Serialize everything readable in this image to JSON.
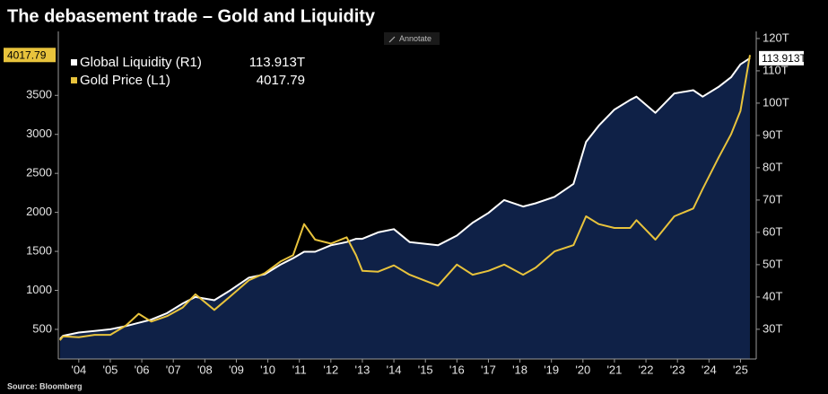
{
  "toolbar": {
    "annotate": "Annotate"
  },
  "chart_data": {
    "type": "line",
    "title": "The debasement trade – Gold and Liquidity",
    "source": "Source: Bloomberg",
    "x": [
      2003.9,
      2004.0,
      2004.5,
      2005.0,
      2005.5,
      2006.0,
      2006.4,
      2006.8,
      2007.3,
      2007.8,
      2008.2,
      2008.8,
      2009.3,
      2009.9,
      2010.4,
      2010.9,
      2011.3,
      2011.65,
      2012.0,
      2012.5,
      2013.0,
      2013.3,
      2013.5,
      2014.0,
      2014.5,
      2015.0,
      2015.9,
      2016.5,
      2017.0,
      2017.5,
      2018.0,
      2018.6,
      2019.0,
      2019.6,
      2020.2,
      2020.6,
      2021.0,
      2021.5,
      2022.0,
      2022.2,
      2022.8,
      2023.4,
      2024.0,
      2024.3,
      2024.8,
      2025.2,
      2025.5,
      2025.8
    ],
    "xlim": [
      2003.85,
      2026.0
    ],
    "xticks": [
      {
        "value": 2004.5,
        "label": "'04"
      },
      {
        "value": 2005.5,
        "label": "'05"
      },
      {
        "value": 2006.5,
        "label": "'06"
      },
      {
        "value": 2007.5,
        "label": "'07"
      },
      {
        "value": 2008.5,
        "label": "'08"
      },
      {
        "value": 2009.5,
        "label": "'09"
      },
      {
        "value": 2010.5,
        "label": "'10"
      },
      {
        "value": 2011.5,
        "label": "'11"
      },
      {
        "value": 2012.5,
        "label": "'12"
      },
      {
        "value": 2013.5,
        "label": "'13"
      },
      {
        "value": 2014.5,
        "label": "'14"
      },
      {
        "value": 2015.5,
        "label": "'15"
      },
      {
        "value": 2016.5,
        "label": "'16"
      },
      {
        "value": 2017.5,
        "label": "'17"
      },
      {
        "value": 2018.5,
        "label": "'18"
      },
      {
        "value": 2019.5,
        "label": "'19"
      },
      {
        "value": 2020.5,
        "label": "'20"
      },
      {
        "value": 2021.5,
        "label": "'21"
      },
      {
        "value": 2022.5,
        "label": "'22"
      },
      {
        "value": 2023.5,
        "label": "'23"
      },
      {
        "value": 2024.5,
        "label": "'24"
      },
      {
        "value": 2025.5,
        "label": "'25"
      }
    ],
    "ylim": [
      120,
      4320
    ],
    "yticks": [
      500,
      1000,
      1500,
      2000,
      2500,
      3000,
      3500
    ],
    "y2lim": [
      20.8,
      122.2
    ],
    "y2ticks": [
      {
        "value": 30,
        "label": "30T"
      },
      {
        "value": 40,
        "label": "40T"
      },
      {
        "value": 50,
        "label": "50T"
      },
      {
        "value": 60,
        "label": "60T"
      },
      {
        "value": 70,
        "label": "70T"
      },
      {
        "value": 80,
        "label": "80T"
      },
      {
        "value": 90,
        "label": "90T"
      },
      {
        "value": 100,
        "label": "100T"
      },
      {
        "value": 110,
        "label": "110T"
      },
      {
        "value": 120,
        "label": "120T"
      }
    ],
    "series": [
      {
        "name": "Global Liquidity (R1)",
        "color": "#ffffff",
        "fill": "#0f2147",
        "axis": "y2",
        "values": [
          27,
          28,
          29,
          29.5,
          30,
          31,
          32,
          33,
          35,
          38,
          40,
          39,
          42,
          46,
          47,
          50,
          52,
          54,
          54,
          56,
          57,
          58,
          58,
          60,
          61,
          57,
          56,
          59,
          63,
          66,
          70,
          68,
          69,
          71,
          75,
          88,
          93,
          98,
          101,
          102,
          97,
          103,
          104,
          102,
          105,
          108,
          112,
          113.913
        ],
        "value_labels": [
          null,
          null,
          null,
          null,
          null,
          null,
          null,
          null,
          null,
          null,
          null,
          null,
          null,
          null,
          null,
          null,
          null,
          null,
          null,
          null,
          null,
          null,
          null,
          null,
          null,
          null,
          null,
          null,
          null,
          null,
          null,
          null,
          null,
          null,
          null,
          null,
          null,
          null,
          null,
          null,
          null,
          null,
          null,
          null,
          null,
          null,
          null,
          "113.913T"
        ]
      },
      {
        "name": "Gold Price (L1)",
        "color": "#e8c33c",
        "axis": "y",
        "values": [
          360,
          410,
          400,
          430,
          430,
          550,
          700,
          600,
          670,
          780,
          950,
          750,
          920,
          1130,
          1220,
          1370,
          1450,
          1850,
          1650,
          1600,
          1680,
          1450,
          1250,
          1240,
          1320,
          1200,
          1060,
          1330,
          1200,
          1250,
          1330,
          1200,
          1290,
          1500,
          1580,
          1950,
          1850,
          1800,
          1800,
          1900,
          1650,
          1950,
          2050,
          2300,
          2700,
          3000,
          3300,
          4017.79
        ]
      }
    ]
  }
}
